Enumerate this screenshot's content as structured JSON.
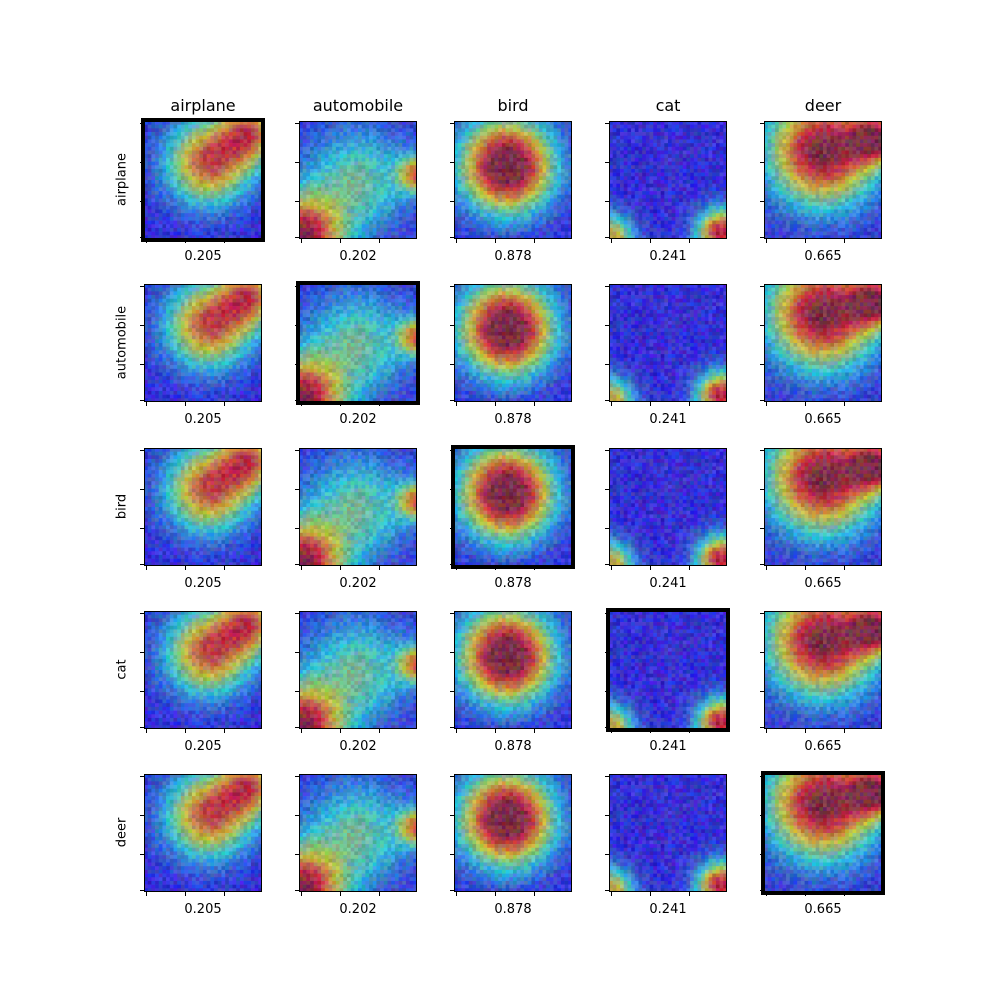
{
  "columns": [
    "airplane",
    "automobile",
    "bird",
    "cat",
    "deer"
  ],
  "rows": [
    "airplane",
    "automobile",
    "bird",
    "cat",
    "deer"
  ],
  "scores": [
    "0.205",
    "0.202",
    "0.878",
    "0.241",
    "0.665"
  ],
  "selected_panels": [
    [
      0,
      0
    ],
    [
      1,
      1
    ],
    [
      2,
      2
    ],
    [
      3,
      3
    ],
    [
      4,
      4
    ]
  ],
  "heatmap_colormap": "jet",
  "colors": {
    "frame": "#000000",
    "background": "#ffffff"
  }
}
